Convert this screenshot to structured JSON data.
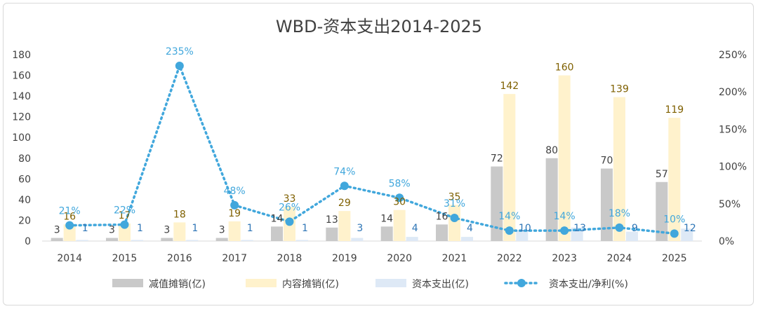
{
  "chart_data": {
    "type": "bar+line",
    "title": "WBD-资本支出2014-2025",
    "categories": [
      "2014",
      "2015",
      "2016",
      "2017",
      "2018",
      "2019",
      "2020",
      "2021",
      "2022",
      "2023",
      "2024",
      "2025"
    ],
    "left_axis": {
      "ylim": [
        0,
        180
      ],
      "ticks": [
        "0",
        "20",
        "40",
        "60",
        "80",
        "100",
        "120",
        "140",
        "160",
        "180"
      ]
    },
    "right_axis": {
      "ylim": [
        0,
        250
      ],
      "ticks": [
        "0%",
        "50%",
        "100%",
        "150%",
        "200%",
        "250%"
      ]
    },
    "series": [
      {
        "name": "减值摊销(亿)",
        "type": "bar",
        "axis": "left",
        "color": "#c9c9c9",
        "values": [
          3,
          3,
          3,
          3,
          14,
          13,
          14,
          16,
          72,
          80,
          70,
          57
        ],
        "labels": [
          "3",
          "3",
          "3",
          "3",
          "14",
          "13",
          "14",
          "16",
          "72",
          "80",
          "70",
          "57"
        ]
      },
      {
        "name": "内容摊销(亿)",
        "type": "bar",
        "axis": "left",
        "color": "#fff2cc",
        "values": [
          16,
          17,
          18,
          19,
          33,
          29,
          30,
          35,
          142,
          160,
          139,
          119
        ],
        "labels": [
          "16",
          "17",
          "18",
          "19",
          "33",
          "29",
          "30",
          "35",
          "142",
          "160",
          "139",
          "119"
        ]
      },
      {
        "name": "资本支出(亿)",
        "type": "bar",
        "axis": "left",
        "color": "#dee9f6",
        "values": [
          1,
          1,
          1,
          1,
          1,
          3,
          4,
          4,
          10,
          13,
          9,
          12
        ],
        "labels": [
          "1",
          "1",
          "1",
          "1",
          "1",
          "3",
          "4",
          "4",
          "10",
          "13",
          "9",
          "12"
        ]
      },
      {
        "name": "资本支出/净利(%)",
        "type": "line",
        "axis": "right",
        "color": "#41a7dc",
        "values": [
          21,
          22,
          235,
          48,
          26,
          74,
          58,
          31,
          14,
          14,
          18,
          10
        ],
        "labels": [
          "21%",
          "22%",
          "235%",
          "48%",
          "26%",
          "74%",
          "58%",
          "31%",
          "14%",
          "14%",
          "18%",
          "10%"
        ]
      }
    ],
    "legend_position": "bottom"
  }
}
